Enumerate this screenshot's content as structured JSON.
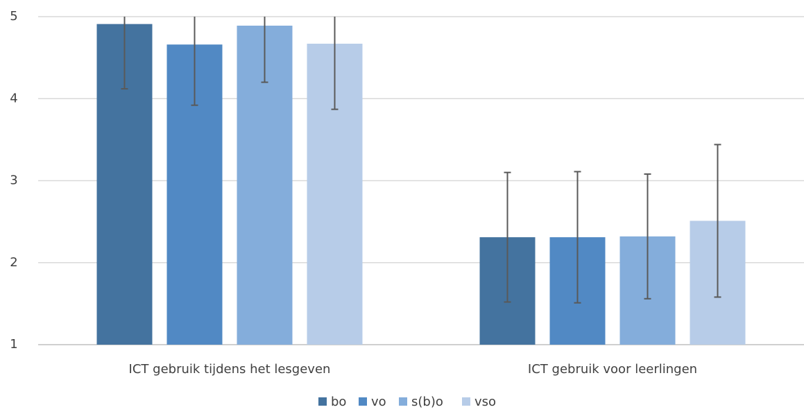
{
  "chart_data": {
    "type": "bar",
    "categories": [
      "ICT gebruik tijdens het lesgeven",
      "ICT gebruik voor leerlingen"
    ],
    "series": [
      {
        "name": "bo",
        "color": "#44739f",
        "values": [
          4.91,
          2.31
        ],
        "errors": [
          0.79,
          0.79
        ]
      },
      {
        "name": "vo",
        "color": "#5189c4",
        "values": [
          4.66,
          2.31
        ],
        "errors": [
          0.74,
          0.8
        ]
      },
      {
        "name": "s(b)o",
        "color": "#84addb",
        "values": [
          4.89,
          2.32
        ],
        "errors": [
          0.69,
          0.76
        ]
      },
      {
        "name": "vso",
        "color": "#b7cce8",
        "values": [
          4.67,
          2.51
        ],
        "errors": [
          0.8,
          0.93
        ]
      }
    ],
    "ylim": [
      1,
      5
    ],
    "yticks": [
      1,
      2,
      3,
      4,
      5
    ],
    "grid": true,
    "legend": "bottom"
  }
}
